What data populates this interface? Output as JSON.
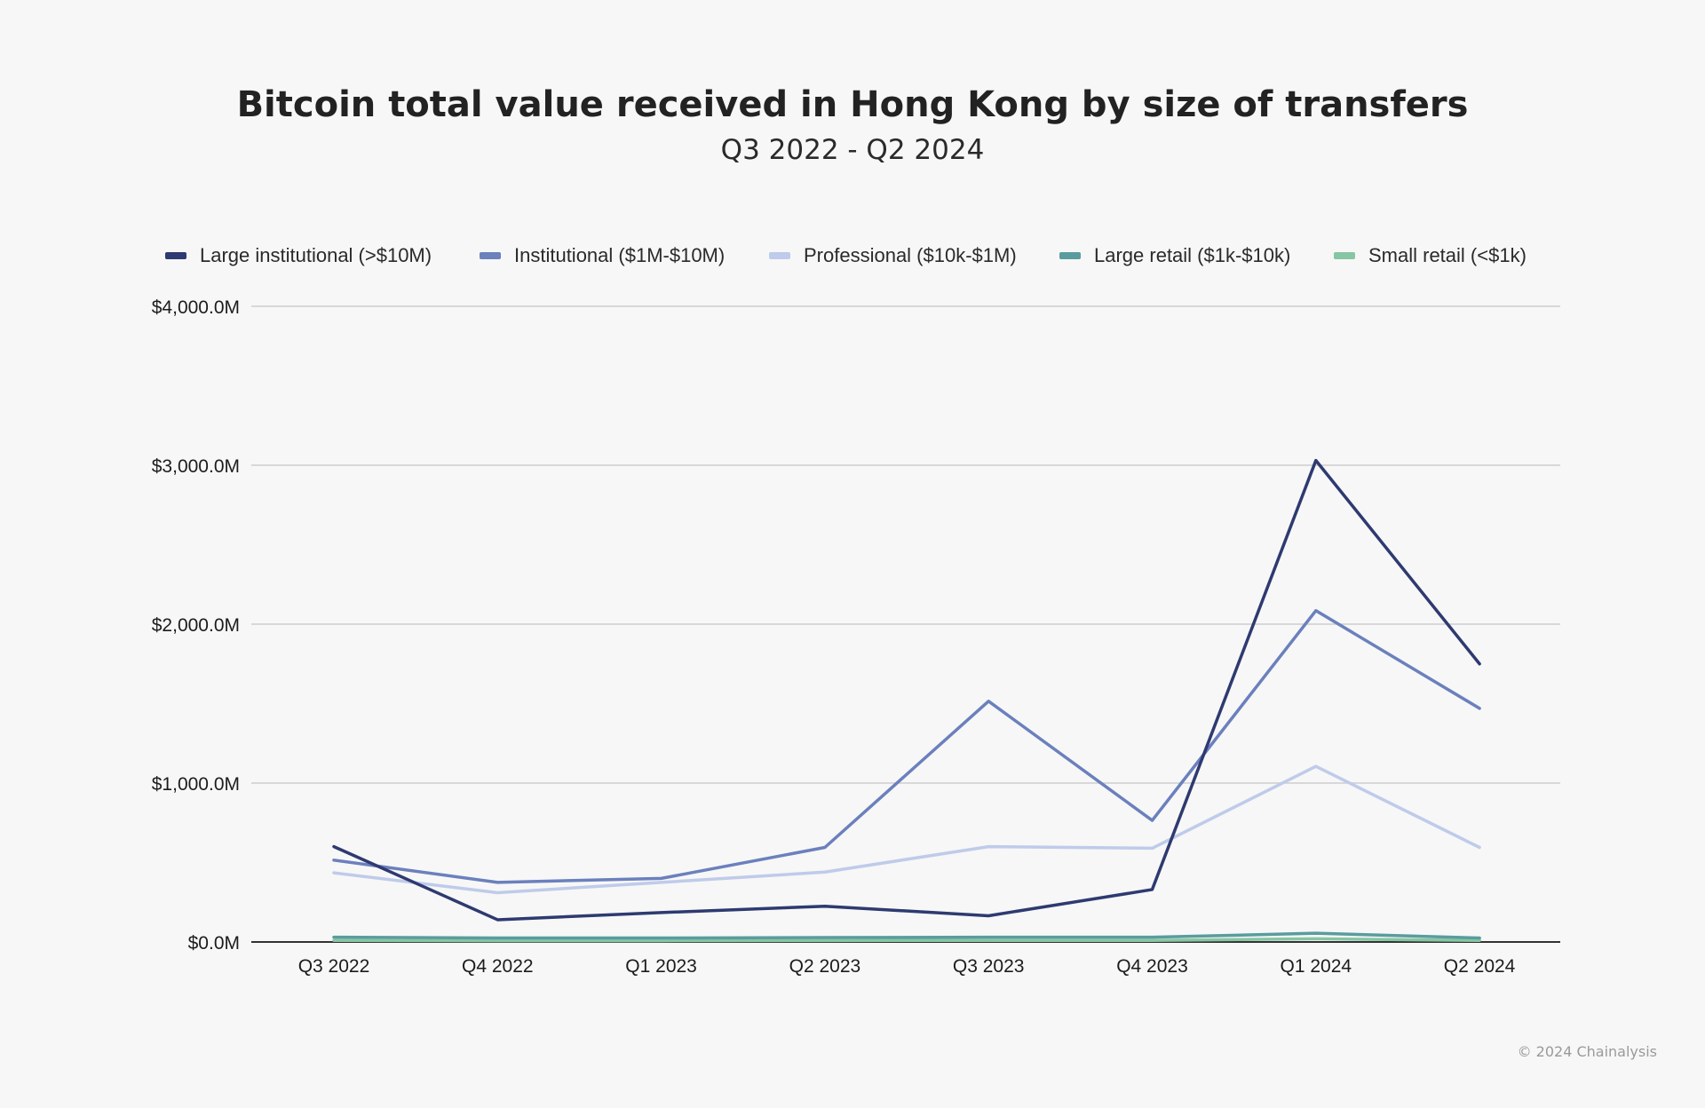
{
  "chart_data": {
    "type": "line",
    "title": "Bitcoin total value received in Hong Kong by size of transfers",
    "subtitle": "Q3 2022 - Q2 2024",
    "xlabel": "",
    "ylabel": "",
    "categories": [
      "Q3 2022",
      "Q4 2022",
      "Q1 2023",
      "Q2 2023",
      "Q3 2023",
      "Q4 2023",
      "Q1 2024",
      "Q2 2024"
    ],
    "ylim": [
      0,
      4000
    ],
    "yticks": [
      0,
      1000,
      2000,
      3000,
      4000
    ],
    "ytick_labels": [
      "$0.0M",
      "$1,000.0M",
      "$2,000.0M",
      "$3,000.0M",
      "$4,000.0M"
    ],
    "grid": true,
    "legend_position": "top",
    "series": [
      {
        "name": "Large institutional (>$10M)",
        "color": "#2e3a70",
        "values": [
          600,
          140,
          185,
          225,
          165,
          330,
          3030,
          1750
        ]
      },
      {
        "name": "Institutional ($1M-$10M)",
        "color": "#6b80bd",
        "values": [
          515,
          375,
          400,
          595,
          1515,
          765,
          2085,
          1470
        ]
      },
      {
        "name": "Professional ($10k-$1M)",
        "color": "#bfcbea",
        "values": [
          435,
          310,
          375,
          440,
          600,
          590,
          1105,
          595
        ]
      },
      {
        "name": "Large retail ($1k-$10k)",
        "color": "#5a9c9e",
        "values": [
          30,
          25,
          25,
          28,
          30,
          30,
          55,
          25
        ]
      },
      {
        "name": "Small retail (<$1k)",
        "color": "#86c6a2",
        "values": [
          10,
          8,
          8,
          9,
          10,
          10,
          20,
          10
        ]
      }
    ]
  },
  "footer": {
    "copyright": "© 2024 Chainalysis"
  }
}
